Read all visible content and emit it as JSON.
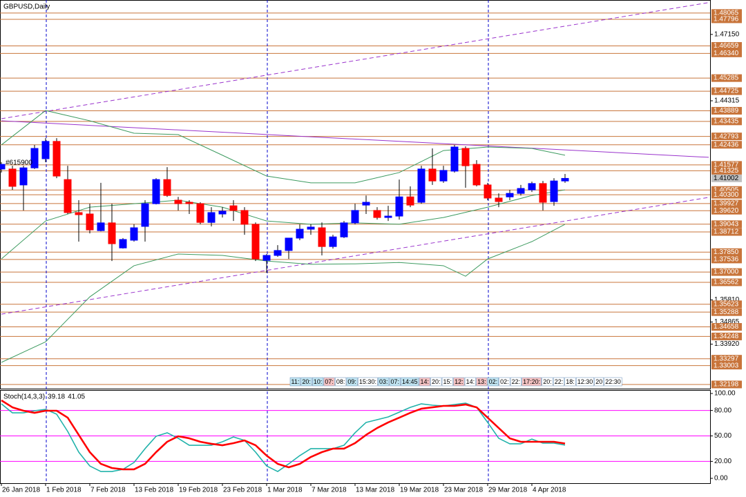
{
  "chart_data": [
    {
      "type": "candlestick",
      "title": "GBPUSD,Daily",
      "annotation": "#615900",
      "categories": [
        "26 Jan 2018",
        null,
        null,
        null,
        "1 Feb 2018",
        null,
        null,
        null,
        "7 Feb 2018",
        null,
        null,
        null,
        "13 Feb 2018",
        null,
        null,
        null,
        "19 Feb 2018",
        null,
        null,
        null,
        "23 Feb 2018",
        null,
        null,
        null,
        "1 Mar 2018",
        null,
        null,
        null,
        "7 Mar 2018",
        null,
        null,
        null,
        "13 Mar 2018",
        null,
        null,
        null,
        "19 Mar 2018",
        null,
        null,
        null,
        "23 Mar 2018",
        null,
        null,
        null,
        "29 Mar 2018",
        null,
        null,
        null,
        "4 Apr 2018",
        null,
        null,
        null
      ],
      "open": [
        1.414,
        1.414,
        1.4072,
        1.4145,
        1.4184,
        1.4258,
        1.4095,
        1.3954,
        1.3948,
        1.3877,
        1.391,
        1.3803,
        1.3836,
        1.3895,
        1.3992,
        1.4095,
        1.4007,
        1.3998,
        1.3992,
        1.3912,
        1.3948,
        1.3983,
        1.3963,
        1.3904,
        1.375,
        1.3771,
        1.3792,
        1.3845,
        1.3883,
        1.3889,
        1.3809,
        1.385,
        1.391,
        1.3986,
        1.3963,
        1.3933,
        1.3939,
        1.4021,
        1.3998,
        1.414,
        1.4089,
        1.4131,
        1.4228,
        1.416,
        1.4072,
        1.4016,
        1.4021,
        1.4036,
        1.4051,
        1.4078,
        1.4001,
        1.4089
      ],
      "high": [
        1.4169,
        1.4154,
        1.4154,
        1.4243,
        1.4272,
        1.4272,
        1.4154,
        1.4007,
        1.3992,
        1.4081,
        1.3992,
        1.3845,
        1.3904,
        1.4007,
        1.4101,
        1.4148,
        1.4021,
        1.4007,
        1.3998,
        1.3977,
        1.3977,
        1.4007,
        1.3977,
        1.3912,
        1.3777,
        1.3815,
        1.3845,
        1.3904,
        1.3904,
        1.3912,
        1.3859,
        1.3918,
        1.3992,
        1.4027,
        1.3977,
        1.3983,
        1.4095,
        1.4066,
        1.4154,
        1.4228,
        1.4154,
        1.4243,
        1.4237,
        1.4178,
        1.4081,
        1.4036,
        1.4051,
        1.4072,
        1.4086,
        1.4089,
        1.4101,
        1.4119
      ],
      "low": [
        1.4125,
        1.4051,
        1.3963,
        1.414,
        1.4169,
        1.4101,
        1.3948,
        1.383,
        1.3865,
        1.3874,
        1.3747,
        1.38,
        1.383,
        1.383,
        1.3989,
        1.4021,
        1.3963,
        1.3948,
        1.3904,
        1.3895,
        1.3933,
        1.3918,
        1.3859,
        1.3747,
        1.3697,
        1.3765,
        1.3756,
        1.3836,
        1.3859,
        1.3771,
        1.38,
        1.3845,
        1.3904,
        1.3948,
        1.3924,
        1.3918,
        1.3924,
        1.3977,
        1.3992,
        1.4072,
        1.4081,
        1.4125,
        1.406,
        1.4066,
        1.4007,
        1.3977,
        1.4007,
        1.4027,
        1.4042,
        1.3963,
        1.3983,
        1.4081
      ],
      "close": [
        1.416,
        1.4066,
        1.4145,
        1.4228,
        1.4258,
        1.411,
        1.3954,
        1.3945,
        1.388,
        1.391,
        1.3821,
        1.3839,
        1.3889,
        1.3992,
        1.4095,
        1.4027,
        1.3992,
        1.3992,
        1.3912,
        1.3954,
        1.396,
        1.3963,
        1.3904,
        1.3756,
        1.3771,
        1.3792,
        1.3845,
        1.3883,
        1.3892,
        1.3809,
        1.385,
        1.391,
        1.3963,
        1.3998,
        1.3933,
        1.3939,
        1.4021,
        1.3986,
        1.414,
        1.4089,
        1.4134,
        1.4234,
        1.4154,
        1.4072,
        1.4016,
        1.4001,
        1.4036,
        1.4057,
        1.4078,
        1.3998,
        1.4089,
        1.41
      ],
      "bull_color": "#0000ff",
      "bear_color": "#ff0000",
      "wick_color": "#000000",
      "ylim": [
        1.3202,
        1.4862
      ],
      "yticks": [
        {
          "value": 1.4715,
          "label": "1.47150"
        },
        1.44315,
        {
          "value": 1.3581,
          "label": "1.35810"
        },
        1.34865,
        {
          "value": 1.3392,
          "label": "1.33920"
        }
      ],
      "level_color": "#c8743a",
      "levels": [
        1.48065,
        1.47796,
        1.46659,
        {
          "value": 1.4634,
          "label": "1.46340"
        },
        1.45285,
        1.44725,
        1.43889,
        1.43435,
        1.42793,
        1.42436,
        1.41577,
        1.41325,
        1.40505,
        {
          "value": 1.403,
          "label": "1.40300"
        },
        1.39927,
        {
          "value": 1.3962,
          "label": "1.39620"
        },
        1.39043,
        1.38712,
        {
          "value": 1.3785,
          "label": "1.37850"
        },
        1.37536,
        {
          "value": 1.37,
          "label": "1.37000"
        },
        1.36562,
        1.35623,
        1.35288,
        1.34658,
        1.34248,
        1.33297,
        1.33003,
        1.32198
      ],
      "last_price": 1.41002,
      "last_price_color": "#c0c0c0",
      "band_color": "#3c9a5f",
      "bands": [
        {
          "x": [
            0,
            4,
            8,
            12,
            16,
            20,
            24,
            28,
            32,
            36,
            40,
            44,
            48,
            51
          ],
          "values": [
            1.4243,
            1.439,
            1.4346,
            1.4293,
            1.4287,
            1.4199,
            1.411,
            1.4081,
            1.4081,
            1.4125,
            1.4219,
            1.4234,
            1.4228,
            1.4199
          ]
        },
        {
          "x": [
            0,
            4,
            8,
            12,
            16,
            20,
            24,
            28,
            32,
            36,
            40,
            44,
            48,
            51
          ],
          "values": [
            1.3756,
            1.3918,
            1.3977,
            1.3992,
            1.4007,
            1.3977,
            1.3918,
            1.3904,
            1.391,
            1.3904,
            1.3933,
            1.3977,
            1.4027,
            1.4051
          ]
        },
        {
          "x": [
            0,
            4,
            8,
            12,
            16,
            20,
            24,
            28,
            32,
            36,
            40,
            42,
            44,
            48,
            51
          ],
          "values": [
            1.3314,
            1.3402,
            1.3594,
            1.3727,
            1.3777,
            1.3771,
            1.3747,
            1.3733,
            1.3735,
            1.3741,
            1.3727,
            1.3682,
            1.3756,
            1.383,
            1.3904
          ]
        }
      ],
      "trend_color": "#9932cc",
      "trendlines": [
        {
          "x": [
            0,
            64
          ],
          "values": [
            1.4355,
            1.4851
          ],
          "dashed": true
        },
        {
          "x": [
            0,
            64
          ],
          "values": [
            1.4346,
            1.419
          ],
          "dashed": false
        },
        {
          "x": [
            0,
            64
          ],
          "values": [
            1.352,
            1.4019
          ],
          "dashed": true
        }
      ],
      "vline_color": "#0000cd",
      "vlines": [
        4,
        24,
        44
      ],
      "time_labels": [
        {
          "text": "11:",
          "color": "#bfe3f0"
        },
        {
          "text": "20:",
          "color": "#bfe3f0"
        },
        {
          "text": "10:",
          "color": "#bfe3f0"
        },
        {
          "text": "07:",
          "color": "#f4c2c2"
        },
        {
          "text": "08:",
          "color": "#ffffff"
        },
        {
          "text": "09:",
          "color": "#bfe3f0"
        },
        {
          "text": "15:30:",
          "color": "#ffffff"
        },
        {
          "text": "03:",
          "color": "#bfe3f0"
        },
        {
          "text": "07:",
          "color": "#bfe3f0"
        },
        {
          "text": "14:45",
          "color": "#bfe3f0"
        },
        {
          "text": "14:",
          "color": "#f4c2c2"
        },
        {
          "text": "20:",
          "color": "#ffffff"
        },
        {
          "text": "15:",
          "color": "#ffffff"
        },
        {
          "text": "12:",
          "color": "#f4c2c2"
        },
        {
          "text": "14:",
          "color": "#ffffff"
        },
        {
          "text": "13:",
          "color": "#f4c2c2"
        },
        {
          "text": "02:",
          "color": "#bfe3f0"
        },
        {
          "text": "02:",
          "color": "#ffffff"
        },
        {
          "text": "22:",
          "color": "#ffffff"
        },
        {
          "text": "17:20:",
          "color": "#f4c2c2"
        },
        {
          "text": "20:",
          "color": "#ffffff"
        },
        {
          "text": "22:",
          "color": "#ffffff"
        },
        {
          "text": "18:",
          "color": "#ffffff"
        },
        {
          "text": "12:30",
          "color": "#ffffff"
        },
        {
          "text": "20",
          "color": "#ffffff"
        },
        {
          "text": "22:30",
          "color": "#ffffff"
        }
      ]
    },
    {
      "type": "line",
      "title": "Stoch(14,3,3)",
      "ylim": [
        -5.7,
        104.1
      ],
      "yticks": [
        {
          "value": 100,
          "label": "100.00"
        },
        {
          "value": 80,
          "label": "80.00"
        },
        {
          "value": 50,
          "label": "50.00"
        },
        {
          "value": 20,
          "label": "20.00"
        },
        {
          "value": 0,
          "label": "0.00"
        }
      ],
      "levels": [
        80,
        50,
        20
      ],
      "level_color": "#ff00ff",
      "series": [
        {
          "color": "#20b2aa",
          "width": 1.6,
          "values": [
            87.8,
            77.2,
            77.2,
            79.7,
            81.3,
            75.6,
            55.3,
            30.9,
            14.6,
            8.1,
            8.1,
            10.6,
            18.7,
            35.0,
            49.6,
            53.7,
            47.2,
            39.0,
            39.0,
            39.0,
            43.1,
            48.8,
            44.7,
            30.9,
            14.6,
            8.1,
            17.1,
            26.8,
            35.0,
            35.0,
            35.0,
            39.0,
            53.7,
            65.9,
            69.1,
            72.4,
            78.0,
            83.7,
            87.8,
            86.2,
            85.4,
            87.0,
            88.6,
            83.7,
            65.9,
            47.2,
            40.7,
            40.7,
            46.3,
            41.5,
            41.5,
            39.18
          ]
        },
        {
          "color": "#ff0000",
          "width": 2.6,
          "values": [
            91.9,
            83.7,
            79.7,
            77.2,
            79.7,
            79.7,
            71.5,
            51.2,
            30.9,
            17.1,
            12.2,
            10.6,
            10.6,
            17.1,
            30.9,
            43.1,
            49.6,
            47.2,
            43.1,
            40.7,
            39.0,
            41.5,
            44.7,
            39.0,
            26.8,
            17.1,
            13.0,
            17.1,
            25.2,
            30.9,
            35.0,
            35.0,
            41.5,
            51.2,
            59.3,
            65.9,
            71.5,
            77.2,
            82.1,
            83.7,
            85.4,
            85.4,
            87.0,
            83.7,
            71.5,
            59.3,
            47.2,
            43.1,
            43.1,
            43.1,
            43.1,
            41.05
          ]
        }
      ]
    }
  ]
}
